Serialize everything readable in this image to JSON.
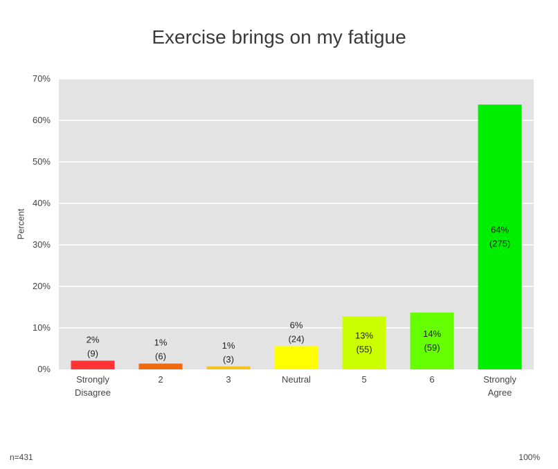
{
  "chart_data": {
    "type": "bar",
    "title": "Exercise brings on my fatigue",
    "xlabel": "",
    "ylabel": "Percent",
    "ylim": [
      0,
      70
    ],
    "yticks": [
      "0%",
      "10%",
      "20%",
      "30%",
      "40%",
      "50%",
      "60%",
      "70%"
    ],
    "grid": true,
    "categories": [
      "Strongly Disagree",
      "2",
      "3",
      "Neutral",
      "5",
      "6",
      "Strongly Agree"
    ],
    "values": [
      2.1,
      1.4,
      0.7,
      5.6,
      12.8,
      13.7,
      63.8
    ],
    "percent_labels": [
      "2%",
      "1%",
      "1%",
      "6%",
      "13%",
      "14%",
      "64%"
    ],
    "count_labels": [
      "(9)",
      "(6)",
      "(3)",
      "(24)",
      "(55)",
      "(59)",
      "(275)"
    ],
    "colors": [
      "#ff3333",
      "#f26a10",
      "#f7c21b",
      "#ffff00",
      "#ccff00",
      "#66ff00",
      "#00ee00"
    ],
    "plot_background": "#e3e3e3"
  },
  "footer": {
    "n_label": "n=431",
    "total_label": "100%"
  }
}
